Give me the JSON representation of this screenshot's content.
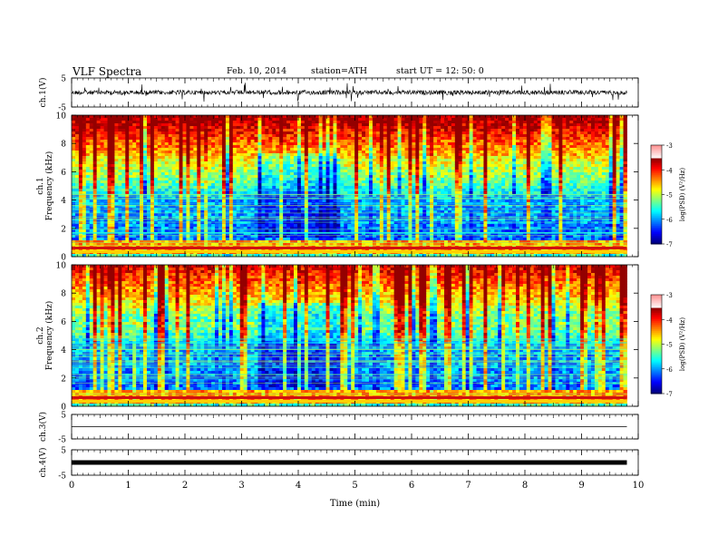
{
  "header": {
    "title": "VLF Spectra",
    "date": "Feb. 10, 2014",
    "station": "station=ATH",
    "start": "start  UT  =   12: 50: 0"
  },
  "chart_data": {
    "type": "heatmap",
    "xlabel": "Time  (min)",
    "xlim": [
      0,
      10
    ],
    "x_ticks": [
      "0",
      "1",
      "2",
      "3",
      "4",
      "5",
      "6",
      "7",
      "8",
      "9",
      "10"
    ],
    "data_end_min": 9.8,
    "panels": [
      {
        "kind": "waveform",
        "ylabel": "ch.1(V)",
        "ylim": [
          -5,
          5
        ],
        "y_ticks": [
          "5",
          "-5"
        ],
        "level": 0.0,
        "noise": "high"
      },
      {
        "kind": "spectrogram",
        "ylabel_top": "ch.1",
        "ylabel": "Frequency  (kHz)",
        "ylim": [
          0,
          10
        ],
        "y_ticks": [
          "10",
          "8",
          "6",
          "4",
          "2",
          "0"
        ],
        "colorbar": {
          "label": "log(PSD) (V²/Hz)",
          "range": [
            -7,
            -3
          ],
          "ticks": [
            "-3",
            "-4",
            "-5",
            "-6",
            "-7"
          ]
        }
      },
      {
        "kind": "spectrogram",
        "ylabel_top": "ch.2",
        "ylabel": "Frequency  (kHz)",
        "ylim": [
          0,
          10
        ],
        "y_ticks": [
          "10",
          "8",
          "6",
          "4",
          "2",
          "0"
        ],
        "colorbar": {
          "label": "log(PSD) (V²/Hz)",
          "range": [
            -7,
            -3
          ],
          "ticks": [
            "-3",
            "-4",
            "-5",
            "-6",
            "-7"
          ]
        }
      },
      {
        "kind": "waveform",
        "ylabel": "ch.3(V)",
        "ylim": [
          -5,
          5
        ],
        "y_ticks": [
          "5",
          "-5"
        ],
        "level": 0.0,
        "noise": "flat"
      },
      {
        "kind": "waveform",
        "ylabel": "ch.4(V)",
        "ylim": [
          -5,
          5
        ],
        "y_ticks": [
          "5",
          "-5"
        ],
        "level": 0.0,
        "noise": "thick"
      }
    ]
  }
}
